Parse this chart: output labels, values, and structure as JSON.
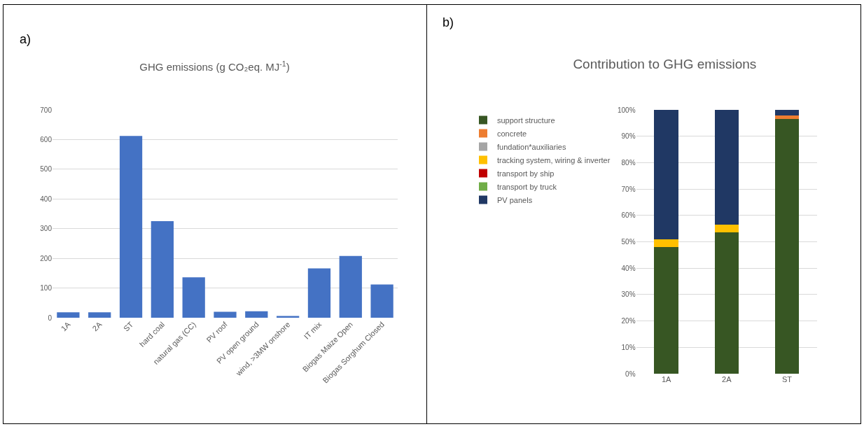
{
  "chart_data": [
    {
      "type": "bar",
      "title": "GHG emissions (g CO₂eq. MJ$^{-1}$)",
      "annotations": [
        "a)"
      ],
      "categories": [
        "1A",
        "2A",
        "ST",
        "hard coal",
        "natural gas (CC)",
        "PV roof",
        "PV open ground",
        "wind, >3MW onshore",
        "IT mix",
        "Biogas Maize Open",
        "Biogas Sorghum Closed"
      ],
      "values": [
        18,
        18,
        612,
        325,
        136,
        20,
        22,
        6,
        166,
        208,
        112
      ],
      "color": "#4472c4",
      "ylim": [
        0,
        700
      ],
      "yticks": [
        0,
        100,
        200,
        300,
        400,
        500,
        600,
        700
      ],
      "grid": "y",
      "legend": false
    },
    {
      "type": "bar",
      "title": "Contribution to GHG emissions",
      "annotations": [
        "b)"
      ],
      "stacked": true,
      "categories": [
        "1A",
        "2A",
        "ST"
      ],
      "series": [
        {
          "name": "support structure",
          "color": "#375623",
          "values": [
            48,
            53.5,
            96.5
          ]
        },
        {
          "name": "concrete",
          "color": "#ed7d31",
          "values": [
            0,
            0,
            1.5
          ]
        },
        {
          "name": "fundation*auxiliaries",
          "color": "#a5a5a5",
          "values": [
            0,
            0,
            0
          ]
        },
        {
          "name": "tracking system, wiring & inverter",
          "color": "#ffc000",
          "values": [
            3,
            3,
            0
          ]
        },
        {
          "name": "transport by ship",
          "color": "#c00000",
          "values": [
            0,
            0,
            0
          ]
        },
        {
          "name": "transport by truck",
          "color": "#70ad47",
          "values": [
            0,
            0,
            0
          ]
        },
        {
          "name": "PV panels",
          "color": "#203864",
          "values": [
            49,
            43.5,
            2
          ]
        }
      ],
      "ylim": [
        0,
        100
      ],
      "yticks": [
        {
          "value": 0,
          "label": "0%"
        },
        {
          "value": 10,
          "label": "10%"
        },
        {
          "value": 20,
          "label": "20%"
        },
        {
          "value": 30,
          "label": "30%"
        },
        {
          "value": 40,
          "label": "40%"
        },
        {
          "value": 50,
          "label": "50%"
        },
        {
          "value": 60,
          "label": "60%"
        },
        {
          "value": 70,
          "label": "70%"
        },
        {
          "value": 80,
          "label": "80%"
        },
        {
          "value": 90,
          "label": "90%"
        },
        {
          "value": 100,
          "label": "100%"
        }
      ],
      "grid": "y",
      "legend": "left"
    }
  ]
}
